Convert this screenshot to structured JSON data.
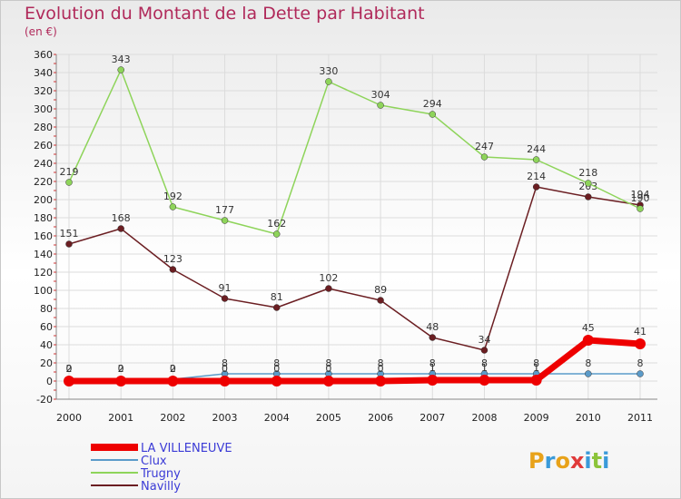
{
  "header": {
    "title": "Evolution du Montant de la Dette par Habitant",
    "unit": "(en €)"
  },
  "logo": {
    "text": "Proxiti"
  },
  "chart_data": {
    "type": "line",
    "title": "Evolution du Montant de la Dette par Habitant",
    "subtitle": "(en €)",
    "xlabel": "",
    "ylabel": "",
    "x": [
      "2000",
      "2001",
      "2002",
      "2003",
      "2004",
      "2005",
      "2006",
      "2007",
      "2008",
      "2009",
      "2010",
      "2011"
    ],
    "ylim": [
      -20,
      360
    ],
    "yticks": [
      -20,
      0,
      20,
      40,
      60,
      80,
      100,
      120,
      140,
      160,
      180,
      200,
      220,
      240,
      260,
      280,
      300,
      320,
      340,
      360
    ],
    "grid": true,
    "legend_position": "bottom-left",
    "series": [
      {
        "name": "LA VILLENEUVE",
        "color": "#ee0000",
        "values": [
          0,
          0,
          0,
          0,
          0,
          0,
          0,
          1,
          1,
          1,
          45,
          41
        ],
        "labels": [
          "0",
          "0",
          "0",
          "0",
          "0",
          "0",
          "0",
          "1",
          "1",
          "1",
          "45",
          "41"
        ]
      },
      {
        "name": "Clux",
        "color": "#5b9bc9",
        "values": [
          2,
          2,
          2,
          8,
          8,
          8,
          8,
          8,
          8,
          8,
          8,
          8
        ],
        "labels": [
          "2",
          "2",
          "2",
          "8",
          "8",
          "8",
          "8",
          "8",
          "8",
          "8",
          "8",
          "8"
        ]
      },
      {
        "name": "Trugny",
        "color": "#8ed45a",
        "values": [
          219,
          343,
          192,
          177,
          162,
          330,
          304,
          294,
          247,
          244,
          218,
          190
        ],
        "labels": [
          "219",
          "343",
          "192",
          "177",
          "162",
          "330",
          "304",
          "294",
          "247",
          "244",
          "218",
          "190"
        ]
      },
      {
        "name": "Navilly",
        "color": "#6b1e22",
        "values": [
          151,
          168,
          123,
          91,
          81,
          102,
          89,
          48,
          34,
          214,
          203,
          194
        ],
        "labels": [
          "151",
          "168",
          "123",
          "91",
          "81",
          "102",
          "89",
          "48",
          "34",
          "214",
          "203",
          "194"
        ]
      }
    ]
  }
}
